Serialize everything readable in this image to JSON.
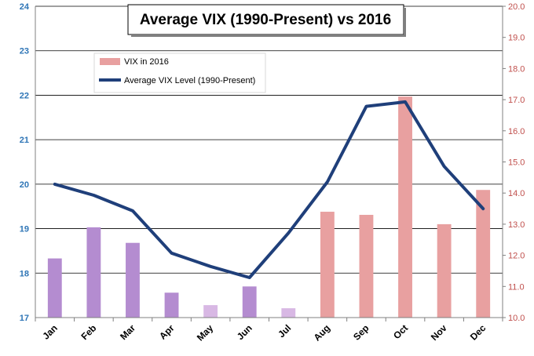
{
  "chart_data": {
    "type": "bar+line",
    "title": "Average VIX (1990-Present) vs 2016",
    "categories": [
      "Jan",
      "Feb",
      "Mar",
      "Apr",
      "May",
      "Jun",
      "Jul",
      "Aug",
      "Sep",
      "Oct",
      "Nov",
      "Dec"
    ],
    "left_axis": {
      "min": 17,
      "max": 24,
      "step": 1,
      "ticks": [
        "17",
        "18",
        "19",
        "20",
        "21",
        "22",
        "23",
        "24"
      ],
      "color": "#2e75b6"
    },
    "right_axis": {
      "min": 10.0,
      "max": 20.0,
      "step": 1,
      "ticks": [
        "10.0",
        "11.0",
        "12.0",
        "13.0",
        "14.0",
        "15.0",
        "16.0",
        "17.0",
        "18.0",
        "19.0",
        "20.0"
      ],
      "color": "#c0504d"
    },
    "series": [
      {
        "name": "VIX in 2016",
        "kind": "bar",
        "axis": "right",
        "values": [
          11.9,
          12.9,
          12.4,
          10.8,
          10.4,
          11.0,
          10.3,
          13.4,
          13.3,
          17.1,
          13.0,
          14.1
        ],
        "colors": [
          "#b48cd0",
          "#b48cd0",
          "#b48cd0",
          "#b48cd0",
          "#d8b8e4",
          "#b48cd0",
          "#d8b8e4",
          "#e8a0a0",
          "#e8a0a0",
          "#e8a0a0",
          "#e8a0a0",
          "#e8a0a0"
        ]
      },
      {
        "name": "Average VIX Level (1990-Present)",
        "kind": "line",
        "axis": "left",
        "color": "#1f3f7a",
        "values": [
          20.0,
          19.75,
          19.4,
          18.45,
          18.15,
          17.9,
          18.9,
          20.05,
          21.75,
          21.85,
          20.4,
          19.45
        ]
      }
    ],
    "legend": {
      "position": "top-left",
      "entries": [
        "VIX in 2016",
        "Average VIX Level (1990-Present)"
      ]
    },
    "grid": true
  }
}
